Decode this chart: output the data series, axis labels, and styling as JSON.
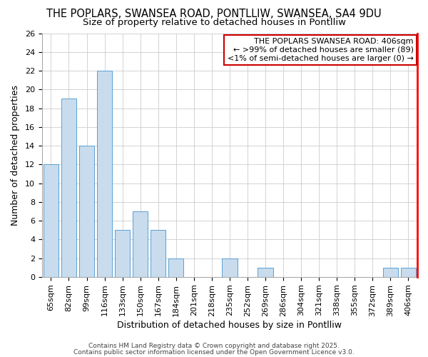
{
  "title_line1": "THE POPLARS, SWANSEA ROAD, PONTLLIW, SWANSEA, SA4 9DU",
  "title_line2": "Size of property relative to detached houses in Pontlliw",
  "xlabel": "Distribution of detached houses by size in Pontlliw",
  "ylabel": "Number of detached properties",
  "categories": [
    "65sqm",
    "82sqm",
    "99sqm",
    "116sqm",
    "133sqm",
    "150sqm",
    "167sqm",
    "184sqm",
    "201sqm",
    "218sqm",
    "235sqm",
    "252sqm",
    "269sqm",
    "286sqm",
    "304sqm",
    "321sqm",
    "338sqm",
    "355sqm",
    "372sqm",
    "389sqm",
    "406sqm"
  ],
  "values": [
    12,
    19,
    14,
    22,
    5,
    7,
    5,
    2,
    0,
    0,
    2,
    0,
    1,
    0,
    0,
    0,
    0,
    0,
    0,
    1,
    1
  ],
  "bar_color": "#c8dcee",
  "bar_edge_color": "#5a9fd4",
  "annotation_text_line1": "THE POPLARS SWANSEA ROAD: 406sqm",
  "annotation_text_line2": "← >99% of detached houses are smaller (89)",
  "annotation_text_line3": "<1% of semi-detached houses are larger (0) →",
  "annotation_box_color": "#ffffff",
  "annotation_box_edge_color": "#cc0000",
  "ylim": [
    0,
    26
  ],
  "yticks": [
    0,
    2,
    4,
    6,
    8,
    10,
    12,
    14,
    16,
    18,
    20,
    22,
    24,
    26
  ],
  "grid_color": "#cccccc",
  "bg_color": "#ffffff",
  "footer_line1": "Contains HM Land Registry data © Crown copyright and database right 2025.",
  "footer_line2": "Contains public sector information licensed under the Open Government Licence v3.0.",
  "title_fontsize": 10.5,
  "subtitle_fontsize": 9.5,
  "axis_label_fontsize": 9,
  "tick_fontsize": 8,
  "annotation_fontsize": 8,
  "footer_fontsize": 6.5
}
